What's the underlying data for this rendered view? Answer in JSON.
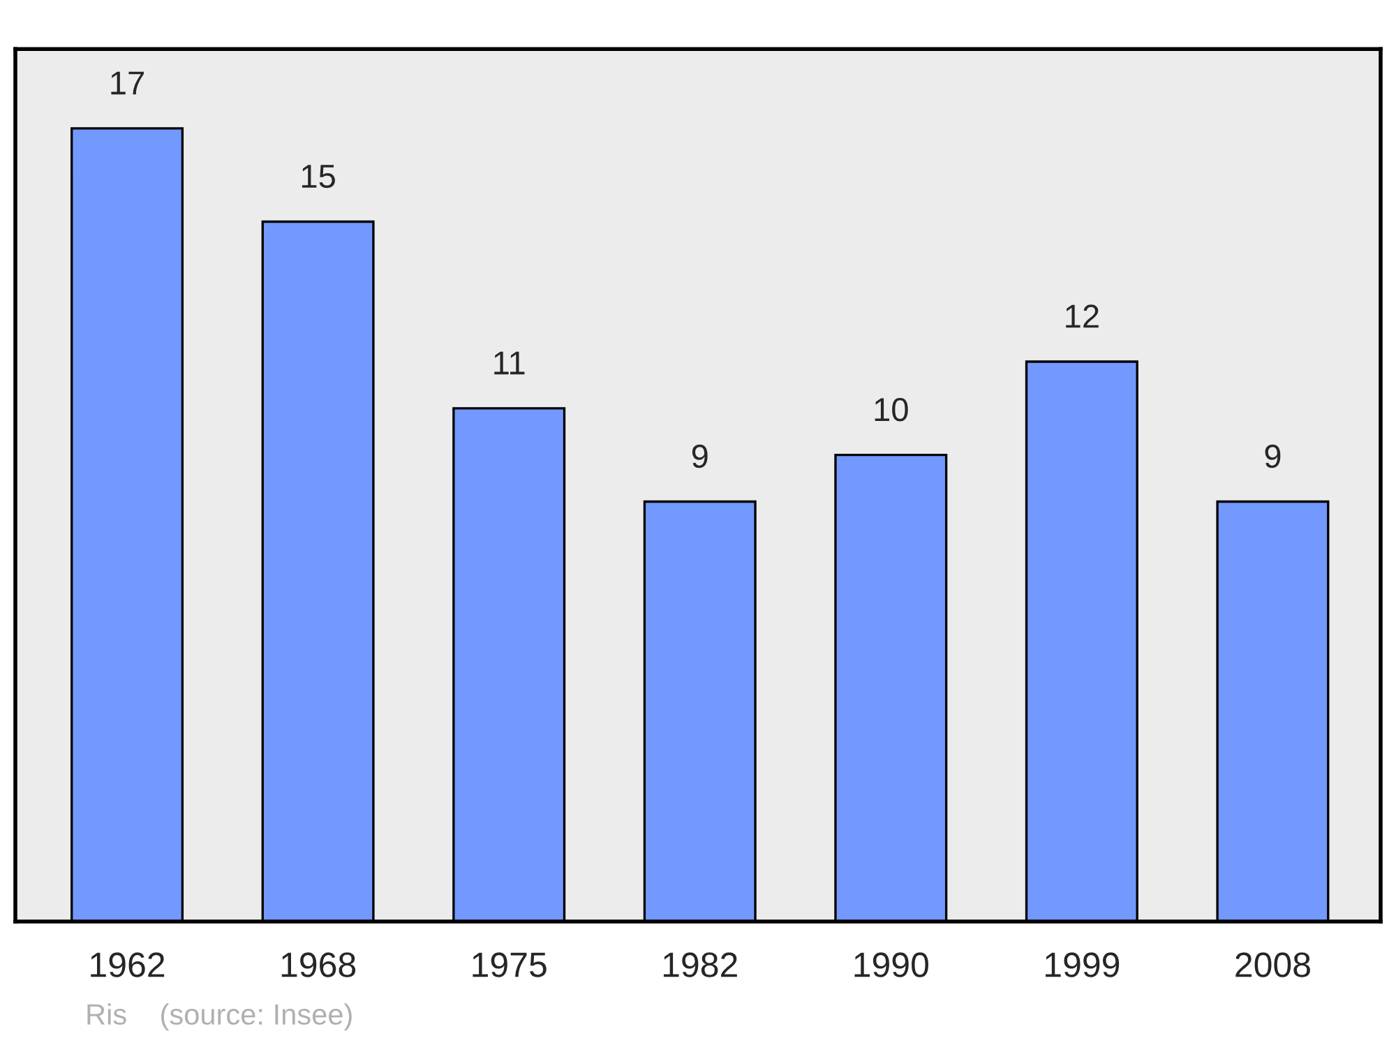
{
  "chart_data": {
    "type": "bar",
    "categories": [
      "1962",
      "1968",
      "1975",
      "1982",
      "1990",
      "1999",
      "2008"
    ],
    "values": [
      17,
      15,
      11,
      9,
      10,
      12,
      9
    ],
    "color": "#7399ff",
    "ylim": [
      0,
      18.7
    ],
    "tick_labels": "x",
    "data_labels": true,
    "grid": false,
    "legend": false,
    "annotations": [
      "Ris    (source: Insee)"
    ]
  }
}
